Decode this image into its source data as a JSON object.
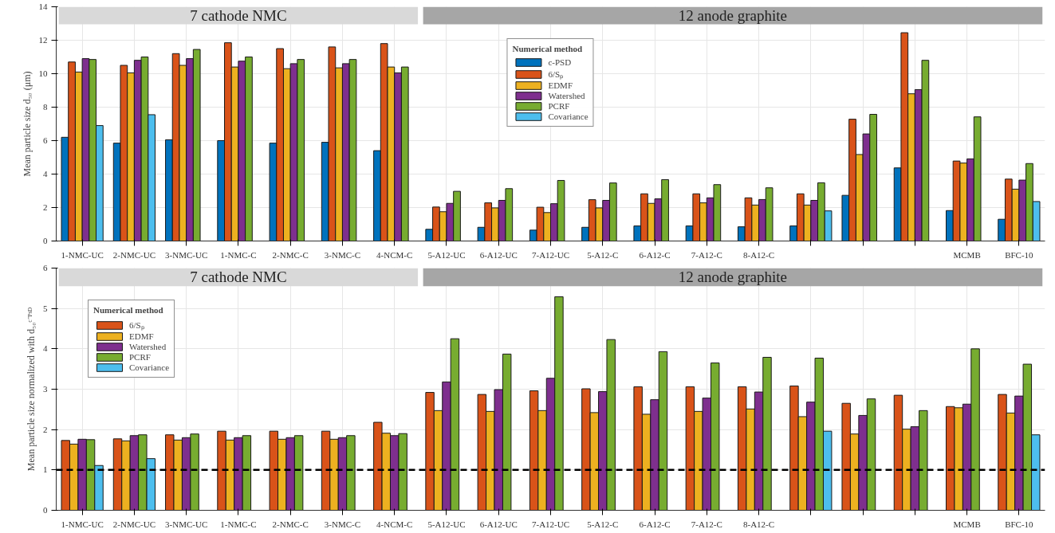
{
  "chart_data": [
    {
      "type": "bar",
      "ylabel": "Mean particle size d₅₀ (μm)",
      "categories": [
        "1-NMC-UC",
        "2-NMC-UC",
        "3-NMC-UC",
        "1-NMC-C",
        "2-NMC-C",
        "3-NMC-C",
        "4-NCM-C",
        "5-A12-UC",
        "6-A12-UC",
        "7-A12-UC",
        "5-A12-C",
        "6-A12-C",
        "7-A12-C",
        "8-A12-C",
        null,
        null,
        null,
        "MCMB",
        "BFC-10"
      ],
      "series": [
        {
          "name": "c-PSD",
          "color": "#0072bd",
          "values": [
            6.2,
            5.85,
            6.05,
            6.0,
            5.85,
            5.9,
            5.4,
            0.7,
            0.82,
            0.65,
            0.82,
            0.9,
            0.9,
            0.85,
            0.9,
            2.73,
            4.37,
            1.82,
            1.3
          ]
        },
        {
          "name": "6/Sₚ",
          "color": "#d95319",
          "values": [
            10.7,
            10.5,
            11.2,
            11.85,
            11.5,
            11.6,
            11.8,
            2.03,
            2.28,
            2.02,
            2.47,
            2.82,
            2.82,
            2.58,
            2.82,
            7.28,
            12.45,
            4.78,
            3.7
          ]
        },
        {
          "name": "EDMF",
          "color": "#edb120",
          "values": [
            10.1,
            10.05,
            10.5,
            10.4,
            10.3,
            10.35,
            10.4,
            1.75,
            1.98,
            1.7,
            1.98,
            2.25,
            2.28,
            2.15,
            2.15,
            5.17,
            8.8,
            4.66,
            3.1
          ]
        },
        {
          "name": "Watershed",
          "color": "#7e2f8e",
          "values": [
            10.9,
            10.8,
            10.9,
            10.75,
            10.6,
            10.6,
            10.05,
            2.25,
            2.43,
            2.23,
            2.43,
            2.52,
            2.58,
            2.48,
            2.43,
            6.4,
            9.05,
            4.91,
            3.64
          ]
        },
        {
          "name": "PCRF",
          "color": "#77ac30",
          "values": [
            10.85,
            11.0,
            11.45,
            11.0,
            10.85,
            10.85,
            10.4,
            2.97,
            3.13,
            3.62,
            3.47,
            3.67,
            3.37,
            3.18,
            3.48,
            7.57,
            10.8,
            7.42,
            4.63
          ]
        },
        {
          "name": "Covariance",
          "color": "#4dbeee",
          "values": [
            6.9,
            7.55,
            null,
            null,
            null,
            null,
            null,
            null,
            null,
            null,
            null,
            null,
            null,
            null,
            1.8,
            null,
            null,
            null,
            2.36
          ]
        }
      ],
      "ylim": [
        0,
        14
      ],
      "yticks": [
        0,
        2,
        4,
        6,
        8,
        10,
        12,
        14
      ],
      "grid": true,
      "legend": "top",
      "legend_title": "Numerical method",
      "bands": [
        {
          "axis": "x",
          "from": "1-NMC-UC",
          "to": "4-NCM-C",
          "label": "7 cathode NMC",
          "color": "#d9d9d9"
        },
        {
          "axis": "x",
          "from": "5-A12-UC",
          "to": "BFC-10",
          "label": "12 anode graphite",
          "color": "#a6a6a6"
        }
      ]
    },
    {
      "type": "bar",
      "ylabel": "Mean particle size normalized with d₅₀ᶜ⁻ᴾˢᴰ",
      "categories": [
        "1-NMC-UC",
        "2-NMC-UC",
        "3-NMC-UC",
        "1-NMC-C",
        "2-NMC-C",
        "3-NMC-C",
        "4-NCM-C",
        "5-A12-UC",
        "6-A12-UC",
        "7-A12-UC",
        "5-A12-C",
        "6-A12-C",
        "7-A12-C",
        "8-A12-C",
        null,
        null,
        null,
        "MCMB",
        "BFC-10"
      ],
      "series": [
        {
          "name": "6/Sₚ",
          "color": "#d95319",
          "values": [
            1.73,
            1.77,
            1.87,
            1.96,
            1.96,
            1.96,
            2.18,
            2.92,
            2.87,
            2.96,
            3.01,
            3.06,
            3.06,
            3.06,
            3.08,
            2.65,
            2.85,
            2.57,
            2.87
          ]
        },
        {
          "name": "EDMF",
          "color": "#edb120",
          "values": [
            1.64,
            1.72,
            1.74,
            1.74,
            1.76,
            1.76,
            1.91,
            2.47,
            2.45,
            2.47,
            2.42,
            2.38,
            2.45,
            2.51,
            2.32,
            1.89,
            2.01,
            2.54,
            2.41
          ]
        },
        {
          "name": "Watershed",
          "color": "#7e2f8e",
          "values": [
            1.76,
            1.85,
            1.8,
            1.8,
            1.8,
            1.8,
            1.85,
            3.18,
            2.99,
            3.27,
            2.94,
            2.74,
            2.78,
            2.93,
            2.68,
            2.35,
            2.07,
            2.63,
            2.83
          ]
        },
        {
          "name": "PCRF",
          "color": "#77ac30",
          "values": [
            1.75,
            1.87,
            1.89,
            1.85,
            1.85,
            1.85,
            1.9,
            4.25,
            3.87,
            5.29,
            4.23,
            3.93,
            3.65,
            3.79,
            3.77,
            2.76,
            2.47,
            4.0,
            3.62
          ]
        },
        {
          "name": "Covariance",
          "color": "#4dbeee",
          "values": [
            1.11,
            1.28,
            null,
            null,
            null,
            null,
            null,
            null,
            null,
            null,
            null,
            null,
            null,
            null,
            1.96,
            null,
            null,
            null,
            1.87
          ]
        }
      ],
      "ylim": [
        0,
        6
      ],
      "yticks": [
        0,
        1,
        2,
        3,
        4,
        5,
        6
      ],
      "grid": true,
      "legend": "top left",
      "legend_title": "Numerical method",
      "bands": [
        {
          "axis": "x",
          "from": "1-NMC-UC",
          "to": "4-NCM-C",
          "label": "7 cathode NMC",
          "color": "#d9d9d9"
        },
        {
          "axis": "x",
          "from": "5-A12-UC",
          "to": "BFC-10",
          "label": "12 anode graphite",
          "color": "#a6a6a6"
        }
      ],
      "ref_lines": [
        {
          "axis": "y",
          "value": 1,
          "color": "#000000",
          "line_style": "dashed"
        }
      ]
    }
  ]
}
